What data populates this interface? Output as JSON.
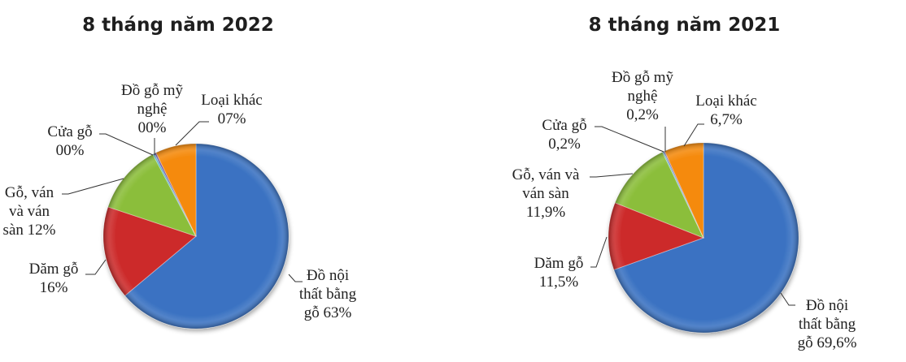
{
  "colors": {
    "blue": "#3A72C2",
    "red": "#CC2929",
    "green": "#8BBE3A",
    "orange": "#F58A0C",
    "purple": "#6B4AA0",
    "teal": "#4BAEC6",
    "leader": "#333333"
  },
  "charts": [
    {
      "title": "8 tháng năm 2022",
      "labels": {
        "furniture": [
          "Đồ nội",
          "thất bằng",
          "gỗ 63%"
        ],
        "chips": [
          "Dăm gỗ",
          "16%"
        ],
        "panels": [
          "Gỗ, ván",
          "và ván",
          "sàn 12%"
        ],
        "doors": [
          "Cửa gỗ",
          "00%"
        ],
        "handicraft": [
          "Đồ gỗ mỹ",
          "nghệ",
          "00%"
        ],
        "other": [
          "Loại khác",
          "07%"
        ]
      }
    },
    {
      "title": "8 tháng năm 2021",
      "labels": {
        "furniture": [
          "Đồ nội",
          "thất bằng",
          "gỗ 69,6%"
        ],
        "chips": [
          "Dăm gỗ",
          "11,5%"
        ],
        "panels": [
          "Gỗ, ván và",
          "ván sàn",
          "11,9%"
        ],
        "doors": [
          "Cửa gỗ",
          "0,2%"
        ],
        "handicraft": [
          "Đồ gỗ mỹ",
          "nghệ",
          "0,2%"
        ],
        "other": [
          "Loại khác",
          "6,7%"
        ]
      }
    }
  ],
  "chart_data": [
    {
      "type": "pie",
      "title": "8 tháng năm 2022",
      "categories": [
        "Đồ nội thất bằng gỗ",
        "Dăm gỗ",
        "Gỗ, ván và ván sàn",
        "Cửa gỗ",
        "Đồ gỗ mỹ nghệ",
        "Loại khác"
      ],
      "values": [
        63,
        16,
        12,
        0.3,
        0.3,
        7
      ],
      "display_labels": [
        "63%",
        "16%",
        "12%",
        "00%",
        "00%",
        "07%"
      ],
      "colors": [
        "#3A72C2",
        "#CC2929",
        "#8BBE3A",
        "#4BAEC6",
        "#6B4AA0",
        "#F58A0C"
      ],
      "start_angle": "12 o'clock, clockwise"
    },
    {
      "type": "pie",
      "title": "8 tháng năm 2021",
      "categories": [
        "Đồ nội thất bằng gỗ",
        "Dăm gỗ",
        "Gỗ, ván và ván sàn",
        "Cửa gỗ",
        "Đồ gỗ mỹ nghệ",
        "Loại khác"
      ],
      "values": [
        69.6,
        11.5,
        11.9,
        0.2,
        0.2,
        6.7
      ],
      "display_labels": [
        "69,6%",
        "11,5%",
        "11,9%",
        "0,2%",
        "0,2%",
        "6,7%"
      ],
      "colors": [
        "#3A72C2",
        "#CC2929",
        "#8BBE3A",
        "#4BAEC6",
        "#6B4AA0",
        "#F58A0C"
      ],
      "start_angle": "12 o'clock, clockwise"
    }
  ]
}
